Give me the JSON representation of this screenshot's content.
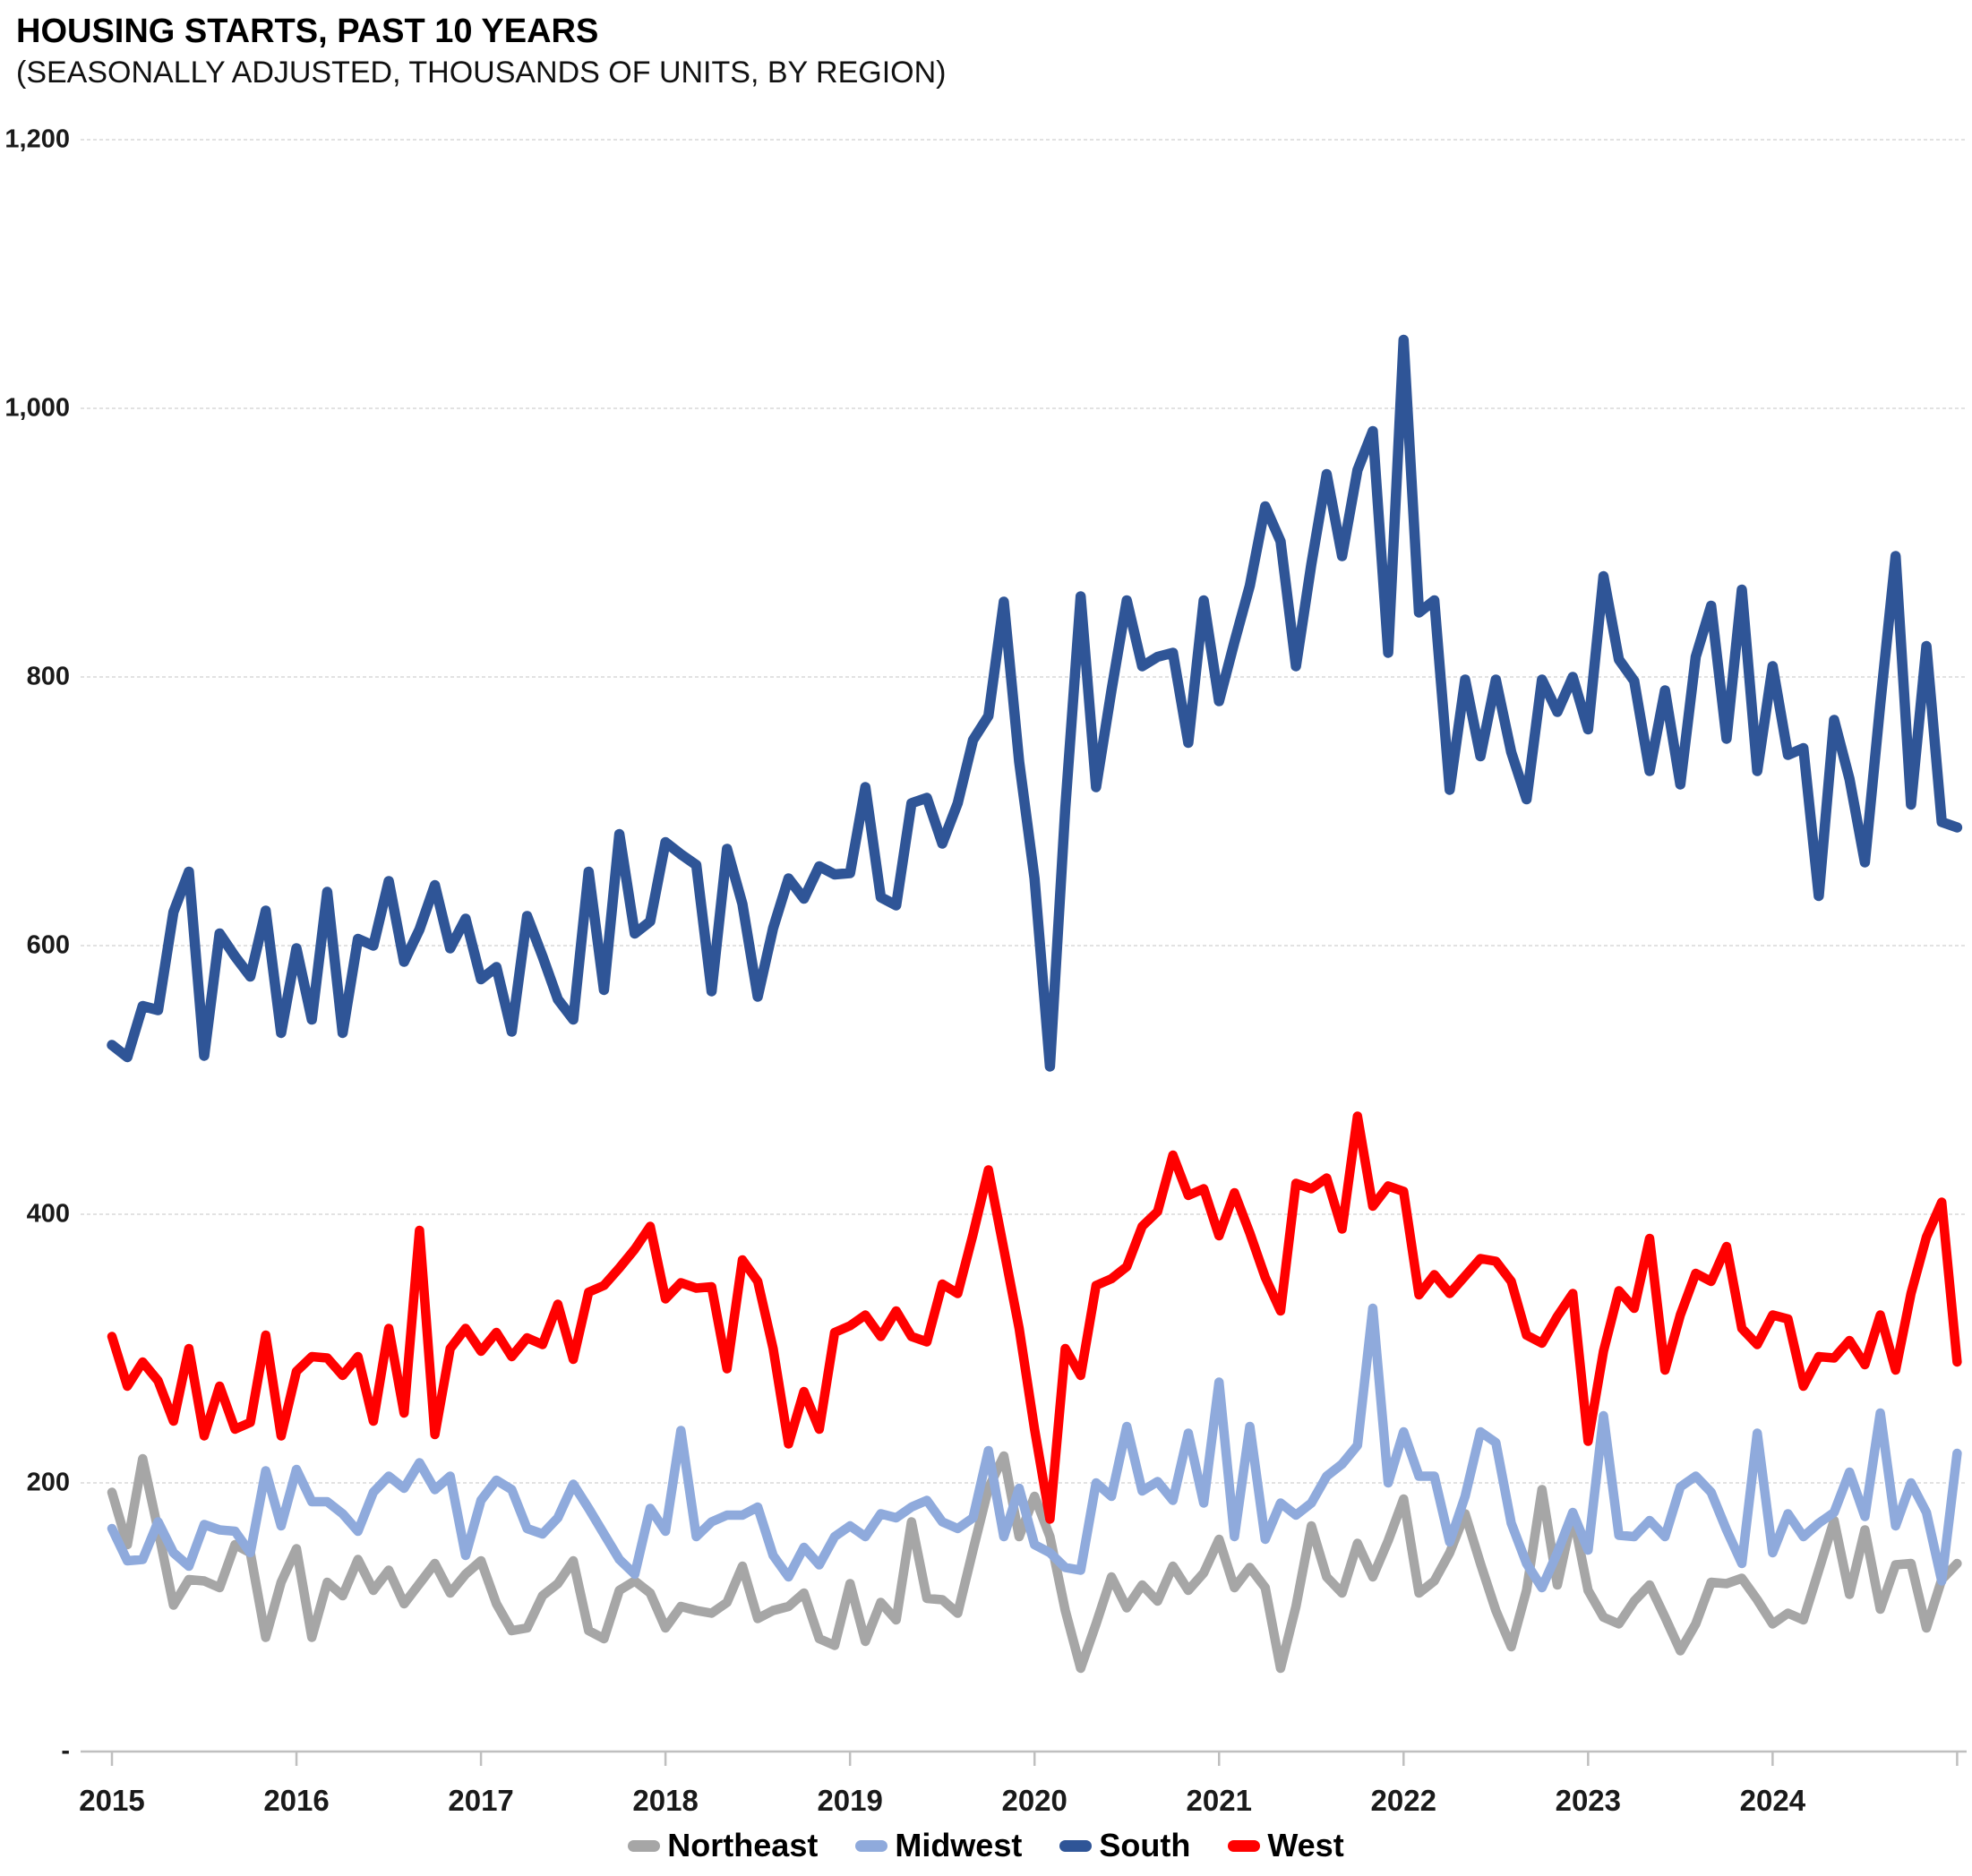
{
  "page": {
    "title": "HOUSING STARTS, PAST 10 YEARS",
    "subtitle": "(SEASONALLY ADJUSTED, THOUSANDS OF UNITS, BY REGION)"
  },
  "chart_data": {
    "type": "line",
    "title": "HOUSING STARTS, PAST 10 YEARS",
    "subtitle": "(SEASONALLY ADJUSTED, THOUSANDS OF UNITS, BY REGION)",
    "xlabel": "",
    "ylabel": "",
    "x_axis": {
      "frequency": "monthly",
      "start": "2015-01",
      "end": "2025-01",
      "tick_labels": [
        "2015",
        "2016",
        "2017",
        "2018",
        "2019",
        "2020",
        "2021",
        "2022",
        "2023",
        "2024"
      ]
    },
    "y_axis": {
      "tick_labels": [
        "1,200",
        "1,000",
        "800",
        "600",
        "400",
        "200",
        "-"
      ],
      "tick_values": [
        1200,
        1000,
        800,
        600,
        400,
        200,
        0
      ],
      "ylim": [
        0,
        1200
      ],
      "grid": true
    },
    "legend_position": "bottom",
    "series": [
      {
        "name": "Northeast",
        "color": "#A6A6A6",
        "values": [
          193,
          154,
          218,
          165,
          109,
          128,
          127,
          122,
          154,
          148,
          85,
          126,
          151,
          85,
          126,
          116,
          143,
          120,
          135,
          110,
          125,
          140,
          118,
          132,
          142,
          110,
          90,
          92,
          116,
          125,
          142,
          90,
          84,
          120,
          127,
          118,
          92,
          108,
          105,
          103,
          111,
          138,
          99,
          105,
          108,
          118,
          84,
          79,
          125,
          82,
          111,
          98,
          171,
          114,
          113,
          103,
          150,
          196,
          220,
          160,
          190,
          160,
          105,
          62,
          95,
          130,
          107,
          124,
          112,
          138,
          120,
          133,
          158,
          122,
          137,
          122,
          62,
          108,
          168,
          130,
          118,
          155,
          130,
          157,
          188,
          118,
          127,
          148,
          177,
          140,
          105,
          78,
          120,
          195,
          124,
          177,
          120,
          100,
          95,
          112,
          124,
          100,
          75,
          95,
          126,
          125,
          129,
          113,
          95,
          103,
          98,
          135,
          172,
          117,
          165,
          106,
          139,
          140,
          92,
          128,
          140
        ]
      },
      {
        "name": "Midwest",
        "color": "#8FAADC",
        "values": [
          166,
          142,
          143,
          171,
          148,
          138,
          169,
          165,
          164,
          148,
          209,
          168,
          210,
          186,
          186,
          177,
          164,
          193,
          205,
          196,
          215,
          195,
          205,
          146,
          187,
          202,
          195,
          166,
          162,
          174,
          199,
          181,
          162,
          143,
          132,
          181,
          164,
          239,
          160,
          171,
          176,
          176,
          182,
          146,
          130,
          152,
          139,
          160,
          168,
          160,
          177,
          174,
          182,
          187,
          171,
          166,
          174,
          224,
          160,
          196,
          154,
          148,
          137,
          135,
          200,
          190,
          242,
          194,
          201,
          187,
          237,
          185,
          275,
          160,
          242,
          158,
          185,
          176,
          185,
          205,
          214,
          228,
          330,
          200,
          238,
          205,
          205,
          156,
          190,
          238,
          230,
          170,
          140,
          122,
          148,
          178,
          150,
          250,
          161,
          160,
          172,
          160,
          197,
          205,
          193,
          165,
          140,
          237,
          148,
          177,
          160,
          170,
          178,
          208,
          175,
          252,
          168,
          200,
          178,
          127,
          222
        ]
      },
      {
        "name": "South",
        "color": "#2F5597",
        "values": [
          526,
          517,
          555,
          552,
          625,
          655,
          518,
          609,
          592,
          577,
          626,
          535,
          598,
          545,
          640,
          535,
          605,
          600,
          648,
          588,
          612,
          645,
          598,
          620,
          575,
          584,
          536,
          622,
          592,
          560,
          545,
          655,
          567,
          683,
          609,
          618,
          677,
          668,
          660,
          566,
          672,
          631,
          562,
          613,
          650,
          635,
          659,
          653,
          654,
          718,
          636,
          630,
          706,
          710,
          676,
          706,
          753,
          771,
          856,
          737,
          650,
          510,
          702,
          860,
          718,
          790,
          857,
          808,
          815,
          818,
          751,
          857,
          782,
          826,
          868,
          927,
          901,
          808,
          884,
          951,
          890,
          954,
          983,
          818,
          1051,
          848,
          857,
          716,
          798,
          741,
          798,
          744,
          709,
          798,
          774,
          800,
          761,
          875,
          813,
          797,
          730,
          790,
          720,
          815,
          853,
          754,
          865,
          730,
          808,
          742,
          747,
          637,
          768,
          724,
          662,
          780,
          890,
          705,
          823,
          692,
          688
        ]
      },
      {
        "name": "West",
        "color": "#FF0000",
        "values": [
          309,
          272,
          290,
          276,
          246,
          300,
          235,
          272,
          240,
          245,
          310,
          235,
          283,
          294,
          293,
          280,
          294,
          246,
          315,
          252,
          388,
          236,
          300,
          315,
          298,
          312,
          294,
          308,
          303,
          333,
          292,
          342,
          347,
          360,
          374,
          391,
          337,
          349,
          345,
          346,
          285,
          366,
          350,
          300,
          229,
          268,
          240,
          312,
          317,
          325,
          309,
          328,
          309,
          305,
          348,
          341,
          385,
          433,
          374,
          315,
          240,
          173,
          300,
          280,
          347,
          352,
          361,
          391,
          402,
          444,
          414,
          419,
          384,
          416,
          386,
          353,
          328,
          423,
          419,
          427,
          389,
          473,
          406,
          421,
          417,
          340,
          355,
          341,
          354,
          367,
          365,
          350,
          310,
          304,
          324,
          341,
          231,
          298,
          343,
          330,
          382,
          284,
          325,
          356,
          350,
          376,
          315,
          303,
          325,
          322,
          272,
          294,
          293,
          306,
          288,
          325,
          284,
          341,
          383,
          409,
          290
        ]
      }
    ]
  }
}
